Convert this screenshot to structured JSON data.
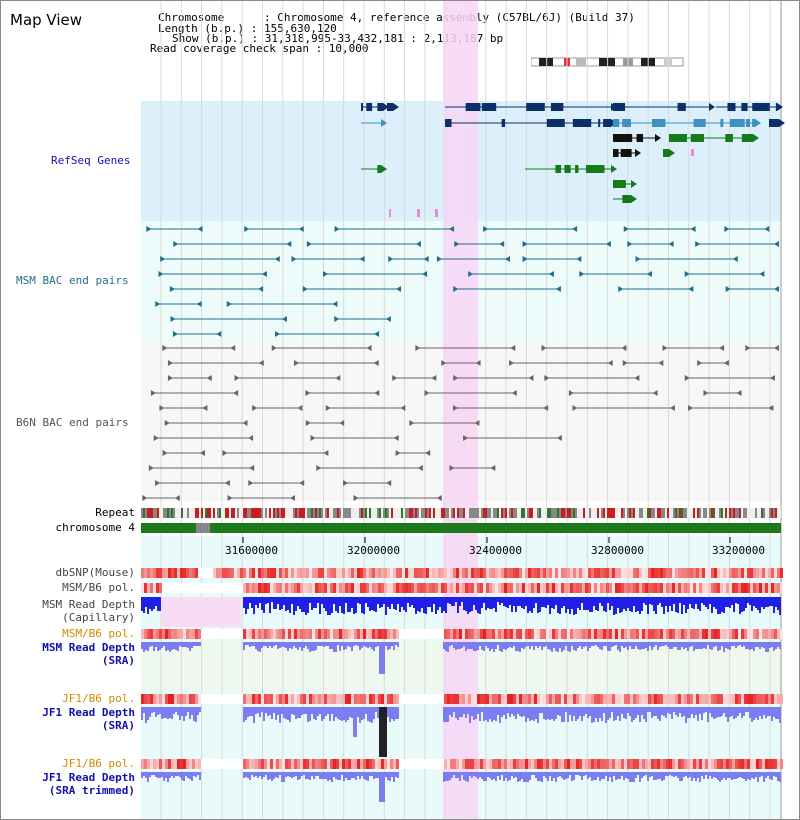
{
  "title": "Map View",
  "header": {
    "chromosome": "Chromosome      : Chromosome 4, reference assembly (C57BL/6J) (Build 37)",
    "length": "Length (b.p.) : 155,630,120",
    "show": "Show (b.p.) : 31,318,995-33,432,181 : 2,113,187 bp",
    "coverage": "Read coverage check span : 10,000"
  },
  "tracks": {
    "refseq": "RefSeq Genes",
    "msm_bac": "MSM BAC end pairs",
    "b6n_bac": "B6N BAC end pairs",
    "repeat": "Repeat",
    "chrom": "chromosome 4",
    "dbsnp": "dbSNP(Mouse)",
    "msm_pol1": "MSM/B6 pol.",
    "msm_depth_cap_1": "MSM Read Depth",
    "msm_depth_cap_2": "(Capillary)",
    "msm_pol2": "MSM/B6 pol.",
    "msm_depth_sra_1": "MSM Read Depth",
    "msm_depth_sra_2": "(SRA)",
    "jf1_pol1": "JF1/B6 pol.",
    "jf1_depth_1": "JF1 Read Depth",
    "jf1_depth_2": "(SRA)",
    "jf1_pol2": "JF1/B6 pol.",
    "jf1_trim_1": "JF1 Read Depth",
    "jf1_trim_2": "(SRA trimmed)"
  },
  "axis": {
    "ticks": [
      "31600000",
      "32000000",
      "32400000",
      "32800000",
      "33200000"
    ]
  },
  "colors": {
    "refseq_bg": "#dbf0fb",
    "bac_bg": "#eefbfb",
    "highlight": "#f7d6f4",
    "gene_dark": "#0b2f66",
    "gene_mid": "#3f8fc0",
    "gene_green": "#157a1a",
    "msm_bac": "#1f6f8a",
    "b6n_bac": "#666666",
    "depth_blue": "#1f1fe6",
    "depth_light": "#7d7df2",
    "pol_red": "#e23a3a",
    "label_blue": "#1010b0",
    "label_orange": "#d08a00"
  }
}
